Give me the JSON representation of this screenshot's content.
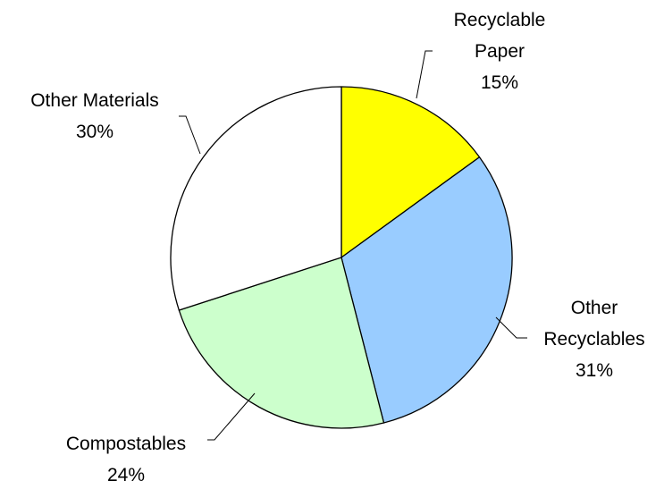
{
  "chart_data": {
    "type": "pie",
    "title": "",
    "start_angle_deg": 0,
    "direction": "clockwise",
    "slices": [
      {
        "label": [
          "Recyclable",
          "Paper"
        ],
        "value": 15,
        "value_label": "15%",
        "color": "#ffff00"
      },
      {
        "label": [
          "Other",
          "Recyclables"
        ],
        "value": 31,
        "value_label": "31%",
        "color": "#99ccff"
      },
      {
        "label": [
          "Compostables"
        ],
        "value": 24,
        "value_label": "24%",
        "color": "#ccffcc"
      },
      {
        "label": [
          "Other Materials"
        ],
        "value": 30,
        "value_label": "30%",
        "color": "#ffffff"
      }
    ]
  }
}
